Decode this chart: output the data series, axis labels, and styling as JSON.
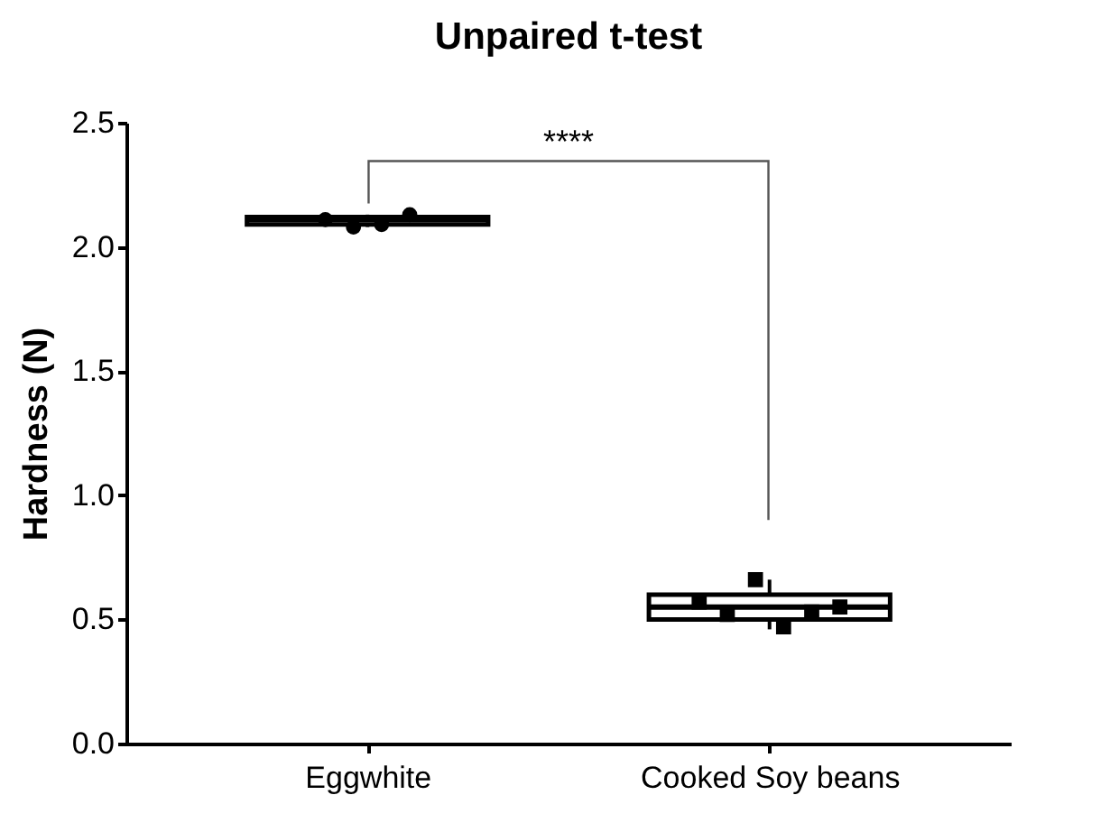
{
  "chart_data": {
    "type": "box",
    "title": "Unpaired t-test",
    "ylabel": "Hardness (N)",
    "categories": [
      "Eggwhite",
      "Cooked Soy beans"
    ],
    "boxes": [
      {
        "low": 2.08,
        "q1": 2.09,
        "median": 2.11,
        "q3": 2.12,
        "high": 2.13
      },
      {
        "low": 0.46,
        "q1": 0.5,
        "median": 0.55,
        "q3": 0.6,
        "high": 0.66
      }
    ],
    "series": [
      {
        "type": "scatter",
        "marker": "circle",
        "color": "#000000",
        "x": [
          "Eggwhite",
          "Eggwhite",
          "Eggwhite",
          "Eggwhite"
        ],
        "values": [
          2.11,
          2.08,
          2.09,
          2.13
        ]
      },
      {
        "type": "scatter",
        "marker": "square",
        "color": "#000000",
        "x": [
          "Cooked Soy beans",
          "Cooked Soy beans",
          "Cooked Soy beans",
          "Cooked Soy beans",
          "Cooked Soy beans",
          "Cooked Soy beans"
        ],
        "values": [
          0.57,
          0.52,
          0.66,
          0.47,
          0.53,
          0.55
        ]
      }
    ],
    "ylim": [
      0,
      2.5
    ],
    "yticks": [
      {
        "value": 0,
        "label": "0.0"
      },
      {
        "value": 0.5,
        "label": "0.5"
      },
      {
        "value": 1,
        "label": "1.0"
      },
      {
        "value": 1.5,
        "label": "1.5"
      },
      {
        "value": 2,
        "label": "2.0"
      },
      {
        "value": 2.5,
        "label": "2.5"
      }
    ],
    "annotations": [
      "****"
    ]
  }
}
